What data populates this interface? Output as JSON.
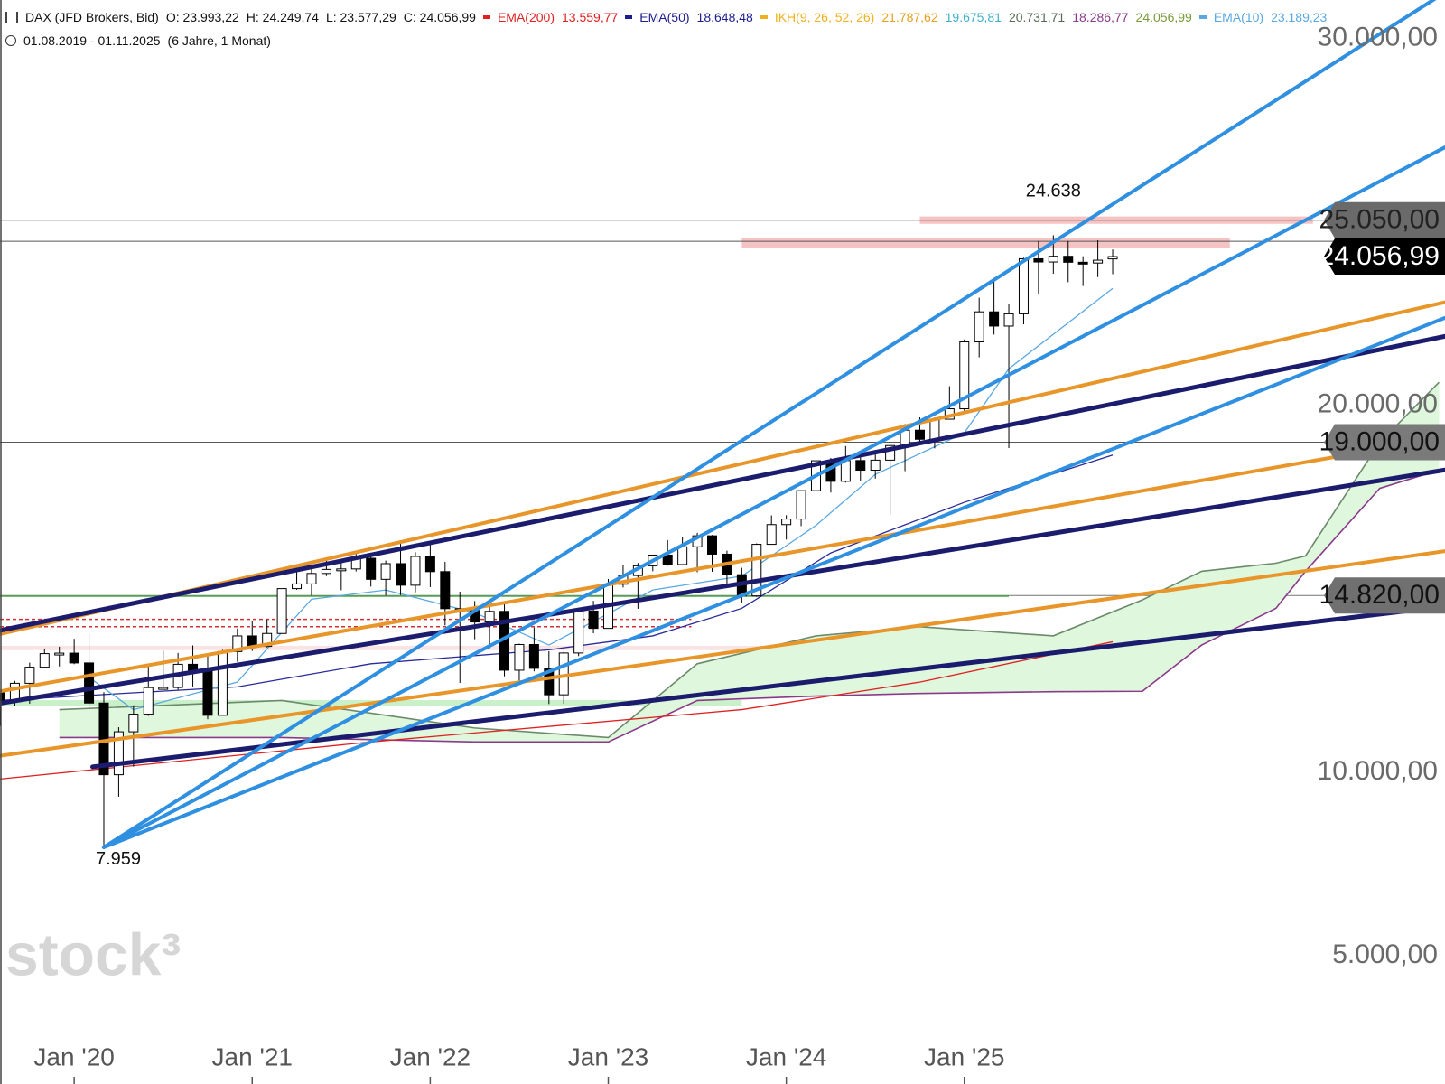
{
  "chart_data": {
    "type": "candlestick",
    "legend_header": {
      "symbol": "DAX (JFD Brokers, Bid)",
      "ohlc": [
        "O: 23.993,22",
        "H: 24.249,74",
        "L: 23.577,29",
        "C: 24.056,99"
      ],
      "indicators": [
        {
          "name": "EMA(200)",
          "color": "#e02020",
          "values": [
            {
              "text": "13.559,77",
              "color": "#e02020"
            }
          ]
        },
        {
          "name": "EMA(50)",
          "color": "#1c1c8e",
          "values": [
            {
              "text": "18.648,48",
              "color": "#1c1c8e"
            }
          ]
        },
        {
          "name": "IKH(9, 26, 52, 26)",
          "color": "#f0b020",
          "values": [
            {
              "text": "21.787,62",
              "color": "#e8a020"
            },
            {
              "text": "19.675,81",
              "color": "#3fb0c8"
            },
            {
              "text": "20.731,71",
              "color": "#556b55"
            },
            {
              "text": "18.286,77",
              "color": "#8b3a8b"
            },
            {
              "text": "24.056,99",
              "color": "#7a9a3a"
            }
          ]
        },
        {
          "name": "EMA(10)",
          "color": "#5aa8e0",
          "values": [
            {
              "text": "23.189,23",
              "color": "#5aa8e0"
            }
          ]
        }
      ],
      "range": "01.08.2019 - 01.11.2025",
      "span": "(6 Jahre, 1 Monat)"
    },
    "xlim": [
      0,
      97.4
    ],
    "ylim": [
      2000,
      31000
    ],
    "xticks": [
      {
        "value": 5,
        "label": "Jan '20"
      },
      {
        "value": 17,
        "label": "Jan '21"
      },
      {
        "value": 29,
        "label": "Jan '22"
      },
      {
        "value": 41,
        "label": "Jan '23"
      },
      {
        "value": 53,
        "label": "Jan '24"
      },
      {
        "value": 65,
        "label": "Jan '25"
      }
    ],
    "yticks": [
      {
        "value": 30000,
        "label": "30.000,00"
      },
      {
        "value": 20000,
        "label": "20.000,00"
      },
      {
        "value": 10000,
        "label": "10.000,00"
      },
      {
        "value": 5000,
        "label": "5.000,00"
      }
    ],
    "up_color": "#ffffff",
    "down_color": "#000000",
    "x": [
      0,
      1,
      2,
      3,
      4,
      5,
      6,
      7,
      8,
      9,
      10,
      11,
      12,
      13,
      14,
      15,
      16,
      17,
      18,
      19,
      20,
      21,
      22,
      23,
      24,
      25,
      26,
      27,
      28,
      29,
      30,
      31,
      32,
      33,
      34,
      35,
      36,
      37,
      38,
      39,
      40,
      41,
      42,
      43,
      44,
      45,
      46,
      47,
      48,
      49,
      50,
      51,
      52,
      53,
      54,
      55,
      56,
      57,
      58,
      59,
      60,
      61,
      62,
      63,
      64,
      65,
      66,
      67,
      68,
      69,
      70,
      71,
      72,
      73,
      74,
      75
    ],
    "ohlc": [
      [
        12189,
        12190,
        11266,
        11939
      ],
      [
        11939,
        12494,
        11803,
        12428
      ],
      [
        12428,
        12990,
        11873,
        12866
      ],
      [
        12866,
        13375,
        12859,
        13236
      ],
      [
        13236,
        13425,
        12886,
        13249
      ],
      [
        13249,
        13640,
        12948,
        12982
      ],
      [
        12982,
        13795,
        11724,
        11890
      ],
      [
        11890,
        12186,
        7959,
        9936
      ],
      [
        9936,
        11231,
        9338,
        11107
      ],
      [
        11107,
        11828,
        10160,
        11587
      ],
      [
        11587,
        12913,
        11539,
        12311
      ],
      [
        12311,
        13313,
        12253,
        12313
      ],
      [
        12313,
        13253,
        12253,
        12945
      ],
      [
        12945,
        13460,
        12341,
        12761
      ],
      [
        12761,
        13177,
        11450,
        11556
      ],
      [
        11556,
        13340,
        11556,
        13291
      ],
      [
        13291,
        13920,
        13011,
        13719
      ],
      [
        13719,
        14131,
        13310,
        13433
      ],
      [
        13433,
        14169,
        13403,
        13786
      ],
      [
        13786,
        15008,
        13785,
        15008
      ],
      [
        15008,
        15502,
        14975,
        15136
      ],
      [
        15136,
        15568,
        14817,
        15421
      ],
      [
        15421,
        15803,
        15350,
        15531
      ],
      [
        15531,
        15810,
        14964,
        15544
      ],
      [
        15544,
        16030,
        15476,
        15835
      ],
      [
        15835,
        15912,
        15064,
        15261
      ],
      [
        15261,
        15771,
        14819,
        15688
      ],
      [
        15688,
        16290,
        14832,
        15100
      ],
      [
        15100,
        16000,
        14906,
        15885
      ],
      [
        15885,
        16285,
        15050,
        15471
      ],
      [
        15471,
        15736,
        14007,
        14461
      ],
      [
        14461,
        14925,
        12439,
        14415
      ],
      [
        14415,
        14668,
        13629,
        14098
      ],
      [
        14098,
        14575,
        13381,
        14388
      ],
      [
        14388,
        14650,
        12618,
        12784
      ],
      [
        12784,
        13508,
        12391,
        13484
      ],
      [
        13484,
        13948,
        12753,
        12835
      ],
      [
        12835,
        13303,
        11863,
        12114
      ],
      [
        12114,
        13282,
        11869,
        13253
      ],
      [
        13253,
        14460,
        13169,
        14397
      ],
      [
        14397,
        14675,
        13791,
        13924
      ],
      [
        13924,
        15270,
        13919,
        15128
      ],
      [
        15128,
        15659,
        15039,
        15365
      ],
      [
        15365,
        15706,
        14458,
        15629
      ],
      [
        15629,
        15922,
        15482,
        15922
      ],
      [
        15922,
        16332,
        15630,
        15664
      ],
      [
        15664,
        16427,
        15656,
        16148
      ],
      [
        16148,
        16528,
        15456,
        16447
      ],
      [
        16447,
        16470,
        15469,
        15947
      ],
      [
        15947,
        16043,
        15138,
        15387
      ],
      [
        15387,
        15575,
        14630,
        14810
      ],
      [
        14810,
        16241,
        14783,
        16215
      ],
      [
        16215,
        17003,
        16207,
        16752
      ],
      [
        16752,
        17009,
        16345,
        16904
      ],
      [
        16904,
        17689,
        16712,
        17678
      ],
      [
        17678,
        18567,
        17670,
        18492
      ],
      [
        18492,
        18567,
        17626,
        17932
      ],
      [
        17932,
        18893,
        17897,
        18498
      ],
      [
        18498,
        18732,
        17945,
        18235
      ],
      [
        18235,
        18693,
        18006,
        18509
      ],
      [
        18509,
        18905,
        17025,
        18907
      ],
      [
        18907,
        19492,
        18210,
        19325
      ],
      [
        19325,
        19675,
        18987,
        19078
      ],
      [
        19078,
        19674,
        18831,
        19626
      ],
      [
        19626,
        20523,
        19626,
        19909
      ],
      [
        19909,
        21800,
        19829,
        21732
      ],
      [
        21732,
        22935,
        21311,
        22551
      ],
      [
        22551,
        23476,
        21931,
        22163
      ],
      [
        22163,
        22768,
        18840,
        22497
      ],
      [
        22497,
        24025,
        22210,
        23997
      ],
      [
        23997,
        24479,
        23052,
        23909
      ],
      [
        23909,
        24638,
        23591,
        24065
      ],
      [
        24065,
        24479,
        23359,
        23902
      ],
      [
        23902,
        24066,
        23255,
        23881
      ],
      [
        23881,
        24500,
        23497,
        23958
      ],
      [
        23993.22,
        24249.74,
        23577.29,
        24056.99
      ]
    ],
    "zones": [
      {
        "color": "#f4b8b8",
        "x": [
          62,
          88.5
        ],
        "values": [
          24950,
          25150
        ]
      },
      {
        "color": "#f4b8b8",
        "x": [
          50,
          82.9
        ],
        "values": [
          24280,
          24560
        ]
      },
      {
        "color": "#f8dede",
        "x": [
          0,
          55
        ],
        "values": [
          13330,
          13450
        ]
      },
      {
        "color": "#bfeec0",
        "x": [
          0,
          50
        ],
        "values": [
          11800,
          11970
        ]
      }
    ],
    "hlines": [
      {
        "color": "#555555",
        "value": 25050
      },
      {
        "color": "#555555",
        "value": 24472
      },
      {
        "color": "#555555",
        "value": 19000
      },
      {
        "color": "#777777",
        "value": 14820
      }
    ],
    "segments": [
      {
        "color": "#4aa84a",
        "dash": false,
        "x": [
          0,
          68
        ],
        "values": [
          14800,
          14800
        ]
      },
      {
        "color": "#d03030",
        "dash": true,
        "x": [
          0,
          46.6
        ],
        "values": [
          14170,
          14170
        ]
      },
      {
        "color": "#d03030",
        "dash": true,
        "x": [
          0,
          46.6
        ],
        "values": [
          13970,
          13970
        ]
      }
    ],
    "cloud": {
      "fill": "#dff7dc",
      "x": [
        4,
        19,
        32,
        41,
        47,
        55,
        62,
        71,
        77,
        81,
        86,
        88,
        93,
        97
      ],
      "span_a": {
        "color": "#6b8a6b",
        "values": [
          11710,
          11960,
          11210,
          10950,
          12960,
          13720,
          13970,
          13720,
          14700,
          15480,
          15700,
          15900,
          18990,
          20630
        ]
      },
      "span_b": {
        "color": "#8b3a8b",
        "values": [
          10950,
          10950,
          10830,
          10830,
          11960,
          12080,
          12150,
          12200,
          12210,
          13470,
          14470,
          15480,
          17740,
          18240
        ]
      }
    },
    "lines": [
      {
        "color": "#e02020",
        "x": [
          0,
          25,
          50,
          62,
          75
        ],
        "values": [
          9820,
          10830,
          11710,
          12460,
          13559.77
        ]
      },
      {
        "color": "#2a2a9a",
        "x": [
          0,
          16,
          25,
          37,
          44,
          50,
          56,
          65,
          75
        ],
        "values": [
          11960,
          12330,
          12960,
          13340,
          13720,
          14470,
          15980,
          17360,
          18648.48
        ]
      },
      {
        "color": "#5aa8e0",
        "x": [
          6,
          9,
          16,
          21,
          26,
          32,
          37,
          44,
          50,
          55,
          59,
          65,
          68,
          75
        ],
        "values": [
          12590,
          11710,
          12460,
          14720,
          14970,
          14350,
          13470,
          14970,
          15350,
          16730,
          18120,
          19250,
          21000,
          23189.23
        ]
      }
    ],
    "trendlines": [
      {
        "color": "#e8962a",
        "width": 4,
        "x": [
          0,
          97.4
        ],
        "values": [
          13769,
          22814
        ]
      },
      {
        "color": "#e8962a",
        "width": 4,
        "x": [
          0,
          97.4
        ],
        "values": [
          12211,
          19121
        ]
      },
      {
        "color": "#e8962a",
        "width": 4,
        "x": [
          0,
          97.4
        ],
        "values": [
          10452,
          16030
        ]
      },
      {
        "color": "#1c1c6e",
        "width": 5,
        "x": [
          0,
          97.4
        ],
        "values": [
          13869,
          21884
        ]
      },
      {
        "color": "#1c1c6e",
        "width": 5,
        "x": [
          0,
          97.4
        ],
        "values": [
          11884,
          18241
        ]
      },
      {
        "color": "#1c1c6e",
        "width": 5,
        "x": [
          6.24,
          97.4
        ],
        "values": [
          10151,
          14523
        ]
      },
      {
        "color": "#2f8fe0",
        "width": 4,
        "x": [
          7,
          97.4
        ],
        "values": [
          7959,
          31256
        ]
      },
      {
        "color": "#2f8fe0",
        "width": 4,
        "x": [
          7,
          97.4
        ],
        "values": [
          7959,
          27035
        ]
      },
      {
        "color": "#2f8fe0",
        "width": 4,
        "x": [
          7,
          97.4
        ],
        "values": [
          7959,
          22387
        ]
      }
    ],
    "price_tags": [
      {
        "value": 25050,
        "label": "25.050,00",
        "fill": "#6a6a6a",
        "text_color": "#222222"
      },
      {
        "value": 24056.99,
        "label": "24.056,99",
        "fill": "#000000",
        "text_color": "#ffffff"
      },
      {
        "value": 19000,
        "label": "19.000,00",
        "fill": "#7a7a7a",
        "text_color": "#111111"
      },
      {
        "value": 14820,
        "label": "14.820,00",
        "fill": "#707070",
        "text_color": "#111111"
      }
    ],
    "annotations": [
      {
        "text": "24.638",
        "x": 71,
        "value": 24638,
        "position": "above"
      },
      {
        "text": "7.959",
        "x": 7,
        "value": 7959,
        "position": "below"
      }
    ],
    "watermark": "stock³"
  }
}
